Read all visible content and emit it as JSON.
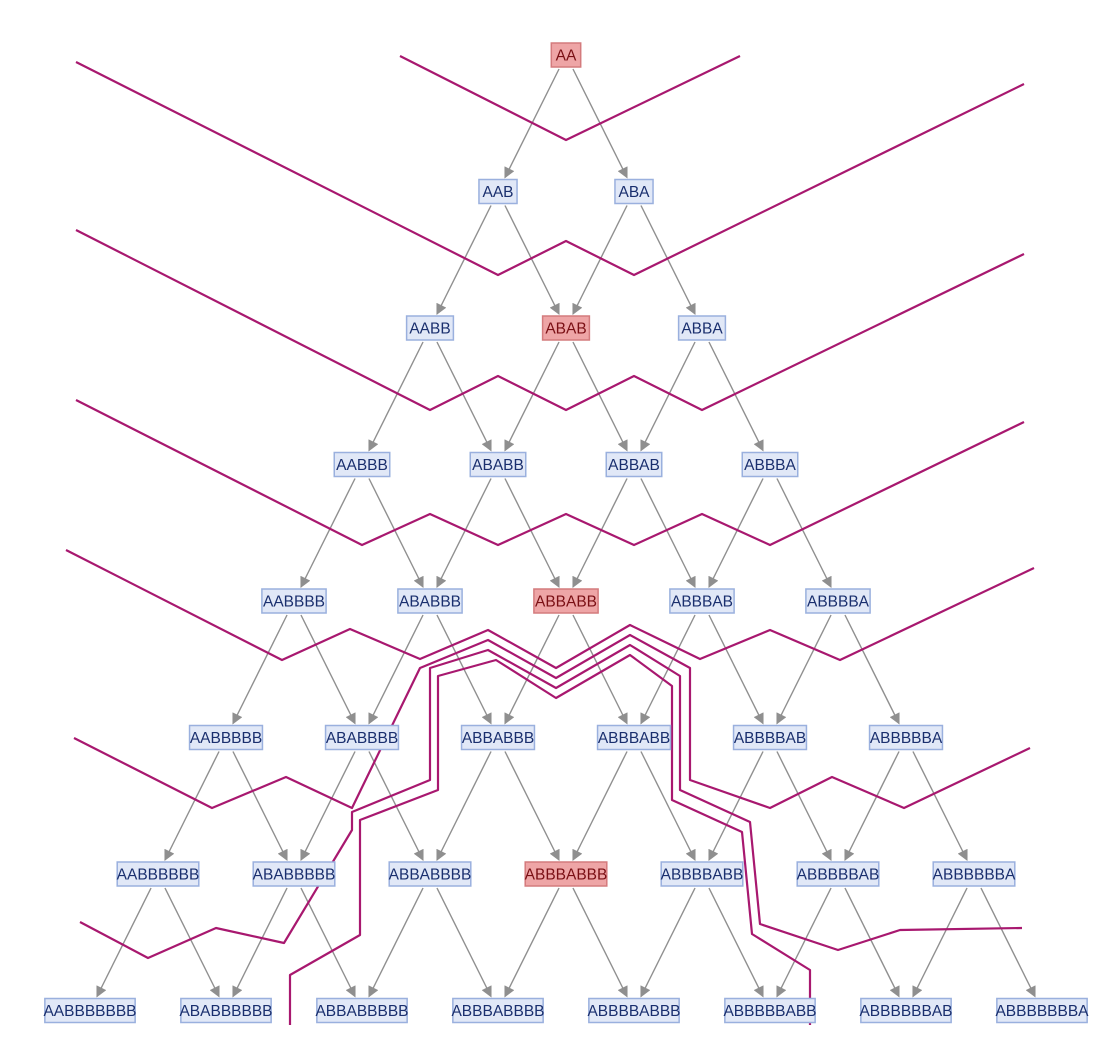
{
  "colors": {
    "node_fill": "#e1e8f7",
    "node_stroke": "#9ab0de",
    "node_text": "#1a2f6e",
    "hl_fill": "#eea5a6",
    "hl_stroke": "#d47b7d",
    "hl_text": "#7a0f14",
    "edge": "#8f8f8f",
    "foliation": "#a8186f"
  },
  "levels": [
    [
      "AA"
    ],
    [
      "AAB",
      "ABA"
    ],
    [
      "AABB",
      "ABAB",
      "ABBA"
    ],
    [
      "AABBB",
      "ABABB",
      "ABBAB",
      "ABBBA"
    ],
    [
      "AABBBB",
      "ABABBB",
      "ABBABB",
      "ABBBAB",
      "ABBBBA"
    ],
    [
      "AABBBBB",
      "ABABBBB",
      "ABBABBB",
      "ABBBABB",
      "ABBBBAB",
      "ABBBBBA"
    ],
    [
      "AABBBBBB",
      "ABABBBBB",
      "ABBABBBB",
      "ABBBABBB",
      "ABBBBABB",
      "ABBBBBAB",
      "ABBBBBBA"
    ],
    [
      "AABBBBBBB",
      "ABABBBBBB",
      "ABBABBBBB",
      "ABBBABBBB",
      "ABBBBABBB",
      "ABBBBBABB",
      "ABBBBBBAB",
      "ABBBBBBBA"
    ]
  ],
  "highlighted": [
    "AA",
    "ABAB",
    "ABBABB",
    "ABBBABBB"
  ]
}
